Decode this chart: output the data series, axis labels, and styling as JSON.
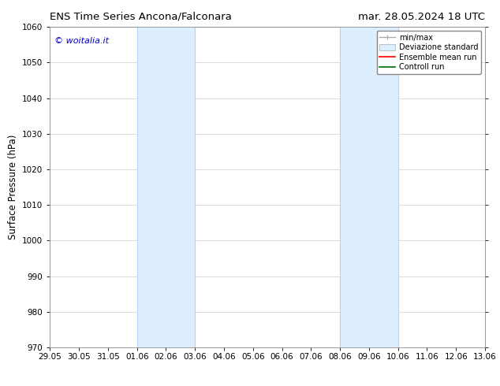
{
  "title_left": "ENS Time Series Ancona/Falconara",
  "title_right": "mar. 28.05.2024 18 UTC",
  "ylabel": "Surface Pressure (hPa)",
  "ylim": [
    970,
    1060
  ],
  "yticks": [
    970,
    980,
    990,
    1000,
    1010,
    1020,
    1030,
    1040,
    1050,
    1060
  ],
  "xtick_labels": [
    "29.05",
    "30.05",
    "31.05",
    "01.06",
    "02.06",
    "03.06",
    "04.06",
    "05.06",
    "06.06",
    "07.06",
    "08.06",
    "09.06",
    "10.06",
    "11.06",
    "12.06",
    "13.06"
  ],
  "xtick_positions": [
    0,
    1,
    2,
    3,
    4,
    5,
    6,
    7,
    8,
    9,
    10,
    11,
    12,
    13,
    14,
    15
  ],
  "shaded_regions": [
    {
      "xmin": 3,
      "xmax": 5,
      "color": "#ddeeff"
    },
    {
      "xmin": 10,
      "xmax": 12,
      "color": "#ddeeff"
    }
  ],
  "shaded_border_color": "#aaccee",
  "watermark_text": "© woitalia.it",
  "watermark_color": "#0000cc",
  "legend_labels": [
    "min/max",
    "Deviazione standard",
    "Ensemble mean run",
    "Controll run"
  ],
  "legend_colors": [
    "#aaaaaa",
    "#ccddee",
    "#ff0000",
    "#006600"
  ],
  "background_color": "#ffffff",
  "grid_color": "#cccccc",
  "title_fontsize": 9.5,
  "tick_fontsize": 7.5,
  "ylabel_fontsize": 8.5,
  "watermark_fontsize": 8,
  "legend_fontsize": 7
}
